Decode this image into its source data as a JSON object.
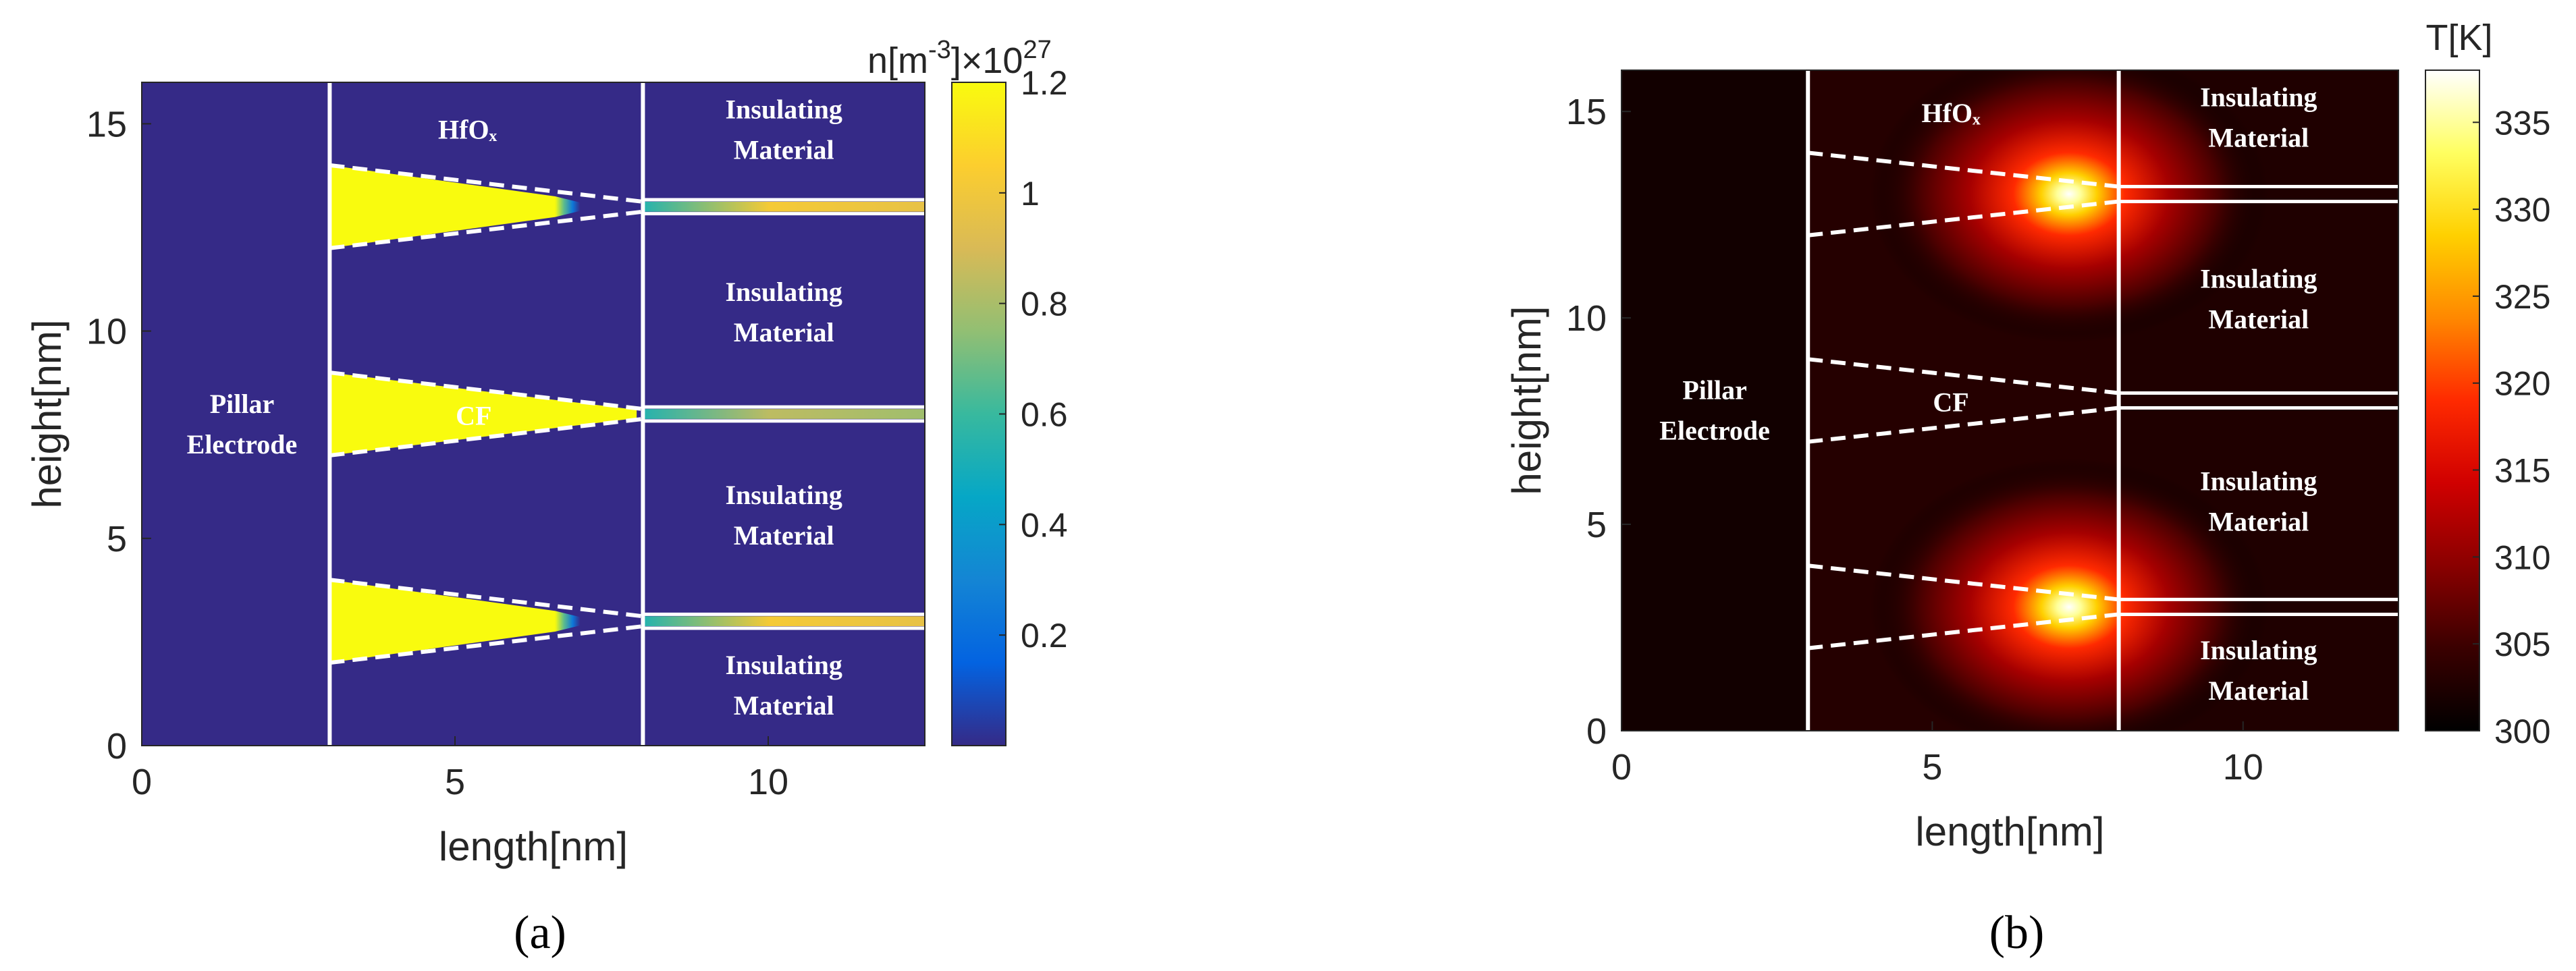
{
  "chart_data": [
    {
      "type": "heatmap",
      "panel_label": "(a)",
      "xlabel": "length[nm]",
      "ylabel": "height[nm]",
      "xlim": [
        0,
        12.5
      ],
      "ylim": [
        0,
        16
      ],
      "xticks": [
        0,
        5,
        10
      ],
      "yticks": [
        0,
        5,
        10,
        15
      ],
      "colorbar": {
        "title_base": "n[m",
        "title_exp": "-3",
        "title_mid": "]×10",
        "title_exp2": "27",
        "range": [
          0,
          1.2
        ],
        "ticks": [
          0.2,
          0.4,
          0.6,
          0.8,
          1,
          1.2
        ],
        "colormap": "parula",
        "colors": [
          "#352a87",
          "#0363e1",
          "#1485d4",
          "#06a7c6",
          "#38b99e",
          "#92bf73",
          "#d9ba56",
          "#fcce2e",
          "#f9fb0e"
        ]
      },
      "background_value": 0,
      "divider_x": [
        3,
        8
      ],
      "regions": [
        {
          "text_lines": [
            "Pillar",
            "Electrode"
          ],
          "x": 1.6,
          "y": 7.8
        },
        {
          "text_lines": [
            "HfOₓ"
          ],
          "x": 5.2,
          "y": 14.9
        },
        {
          "text_lines": [
            "Insulating",
            "Material"
          ],
          "x": 10.25,
          "y": 14.9
        },
        {
          "text_lines": [
            "Insulating",
            "Material"
          ],
          "x": 10.25,
          "y": 10.5
        },
        {
          "text_lines": [
            "Insulating",
            "Material"
          ],
          "x": 10.25,
          "y": 5.6
        },
        {
          "text_lines": [
            "Insulating",
            "Material"
          ],
          "x": 10.25,
          "y": 1.5
        },
        {
          "text_lines": [
            "CF"
          ],
          "x": 5.3,
          "y": 8.0
        }
      ],
      "filaments": [
        {
          "x0": 3,
          "x_tip": 6.6,
          "y_center": 13,
          "half_width": 1.0,
          "tip_half_width": 0.25,
          "value": 1.2
        },
        {
          "x0": 3,
          "x_tip": 7.9,
          "y_center": 8,
          "half_width": 1.0,
          "tip_half_width": 0.1,
          "value": 1.2
        },
        {
          "x0": 3,
          "x_tip": 6.6,
          "y_center": 3,
          "half_width": 1.0,
          "tip_half_width": 0.25,
          "value": 1.2
        }
      ],
      "channels": [
        {
          "y_center": 13,
          "x_start": 8,
          "x_end": 12.5,
          "value": 0.85
        },
        {
          "y_center": 8,
          "x_start": 8,
          "x_end": 12.5,
          "value": 0.7
        },
        {
          "y_center": 3,
          "x_start": 8,
          "x_end": 12.5,
          "value": 0.85
        }
      ]
    },
    {
      "type": "heatmap",
      "panel_label": "(b)",
      "xlabel": "length[nm]",
      "ylabel": "height[nm]",
      "xlim": [
        0,
        12.5
      ],
      "ylim": [
        0,
        16
      ],
      "xticks": [
        0,
        5,
        10
      ],
      "yticks": [
        0,
        5,
        10,
        15
      ],
      "colorbar": {
        "title": "T[K]",
        "range": [
          300,
          338
        ],
        "ticks": [
          300,
          305,
          310,
          315,
          320,
          325,
          330,
          335
        ],
        "colormap": "hot",
        "colors": [
          "#000000",
          "#3a0000",
          "#8a0000",
          "#d00000",
          "#ff2a00",
          "#ff8800",
          "#ffd000",
          "#ffff60",
          "#ffffff"
        ]
      },
      "divider_x": [
        3,
        8
      ],
      "regions": [
        {
          "text_lines": [
            "Pillar",
            "Electrode"
          ],
          "x": 1.5,
          "y": 7.8
        },
        {
          "text_lines": [
            "HfOₓ"
          ],
          "x": 5.3,
          "y": 15.0
        },
        {
          "text_lines": [
            "Insulating",
            "Material"
          ],
          "x": 10.25,
          "y": 14.9
        },
        {
          "text_lines": [
            "Insulating",
            "Material"
          ],
          "x": 10.25,
          "y": 10.5
        },
        {
          "text_lines": [
            "Insulating",
            "Material"
          ],
          "x": 10.25,
          "y": 5.6
        },
        {
          "text_lines": [
            "Insulating",
            "Material"
          ],
          "x": 10.25,
          "y": 1.5
        },
        {
          "text_lines": [
            "CF"
          ],
          "x": 5.3,
          "y": 8.0
        }
      ],
      "filament_outlines_y": [
        13,
        8,
        3
      ],
      "hotspots": [
        {
          "x": 7.2,
          "y": 13.0,
          "peak_K": 338
        },
        {
          "x": 7.2,
          "y": 3.0,
          "peak_K": 338
        }
      ]
    }
  ]
}
